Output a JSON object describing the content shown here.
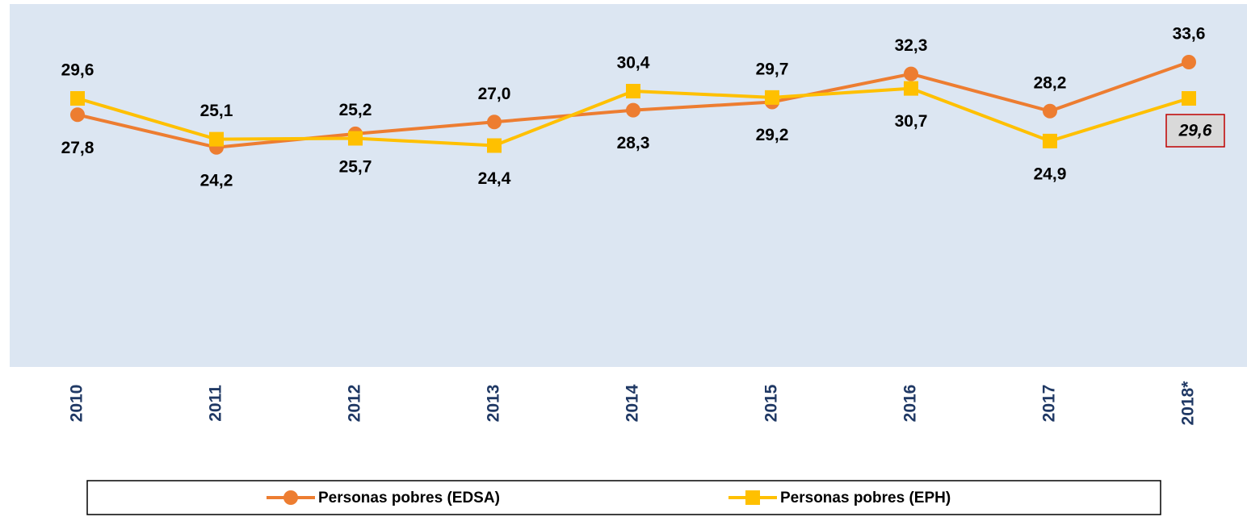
{
  "chart_data": {
    "type": "line",
    "categories": [
      "2010",
      "2011",
      "2012",
      "2013",
      "2014",
      "2015",
      "2016",
      "2017",
      "2018*"
    ],
    "series": [
      {
        "name": "Personas pobres (EDSA)",
        "color": "#ed7d31",
        "marker": "circle",
        "values": [
          27.8,
          24.2,
          25.7,
          27.0,
          28.3,
          29.2,
          32.3,
          28.2,
          33.6
        ],
        "value_labels": [
          "27,8",
          "24,2",
          "25,7",
          "27,0",
          "28,3",
          "29,2",
          "32,3",
          "28,2",
          "33,6"
        ]
      },
      {
        "name": "Personas pobres (EPH)",
        "color": "#ffc000",
        "marker": "square",
        "values": [
          29.6,
          25.1,
          25.2,
          24.4,
          30.4,
          29.7,
          30.7,
          24.9,
          29.6
        ],
        "value_labels": [
          "29,6",
          "25,1",
          "25,2",
          "24,4",
          "30,4",
          "29,7",
          "30,7",
          "24,9",
          "29,6"
        ]
      }
    ],
    "ylim": [
      0,
      40
    ],
    "grid": false,
    "legend": "bottom"
  }
}
